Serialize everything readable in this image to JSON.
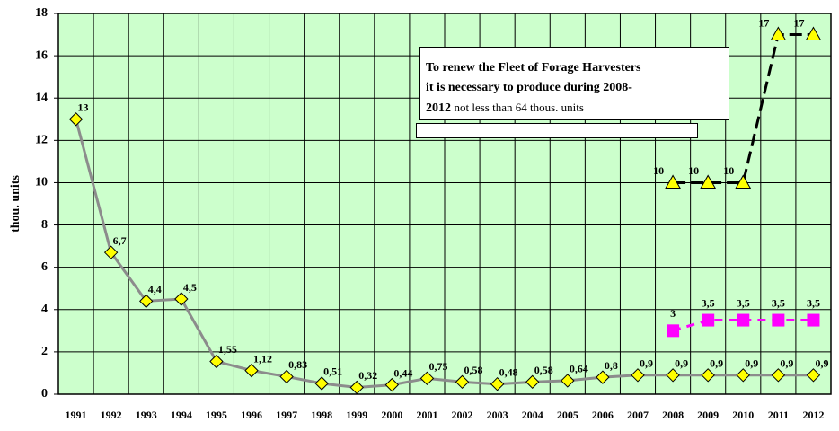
{
  "chart_data": {
    "type": "line",
    "categories": [
      "1991",
      "1992",
      "1993",
      "1994",
      "1995",
      "1996",
      "1997",
      "1998",
      "1999",
      "2000",
      "2001",
      "2002",
      "2003",
      "2004",
      "2005",
      "2006",
      "2007",
      "2008",
      "2009",
      "2010",
      "2011",
      "2012"
    ],
    "y_label": "thou. units",
    "ylim": [
      0,
      18
    ],
    "yticks": [
      0,
      2,
      4,
      6,
      8,
      10,
      12,
      14,
      16,
      18
    ],
    "grid": true,
    "background": "#ccffcc",
    "annotation": [
      "To renew the Fleet of Forage Harvesters",
      "it is necessary to produce during 2008-",
      "2012",
      "not less than 64 thous. units"
    ],
    "series": [
      {
        "color": "#ffff00",
        "line_color": "#8c8c8c",
        "marker": "diamond",
        "values": [
          13,
          6.7,
          4.4,
          4.5,
          1.55,
          1.12,
          0.83,
          0.51,
          0.32,
          0.44,
          0.75,
          0.58,
          0.48,
          0.58,
          0.64,
          0.8,
          0.9,
          0.9,
          0.9,
          0.9,
          0.9,
          0.9
        ],
        "value_labels": [
          "13",
          "6,7",
          "4,4",
          "4,5",
          "1,55",
          "1,12",
          "0,83",
          "0,51",
          "0,32",
          "0,44",
          "0,75",
          "0,58",
          "0,48",
          "0,58",
          "0,64",
          "0,8",
          "0,9",
          "0,9",
          "0,9",
          "0,9",
          "0,9",
          "0,9"
        ]
      },
      {
        "color": "#ffff00",
        "line_color": "#000000",
        "marker": "triangle",
        "values": [
          null,
          null,
          null,
          null,
          null,
          null,
          null,
          null,
          null,
          null,
          null,
          null,
          null,
          null,
          null,
          null,
          null,
          10,
          10,
          10,
          17,
          17
        ]
      },
      {
        "color": "#ff00ff",
        "line_color": "#ff00ff",
        "marker": "square",
        "values": [
          null,
          null,
          null,
          null,
          null,
          null,
          null,
          null,
          null,
          null,
          null,
          null,
          null,
          null,
          null,
          null,
          null,
          3,
          3.5,
          3.5,
          3.5,
          3.5
        ],
        "value_labels": [
          null,
          null,
          null,
          null,
          null,
          null,
          null,
          null,
          null,
          null,
          null,
          null,
          null,
          null,
          null,
          null,
          null,
          "3",
          "3,5",
          "3,5",
          "3,5",
          "3,5"
        ]
      }
    ]
  }
}
